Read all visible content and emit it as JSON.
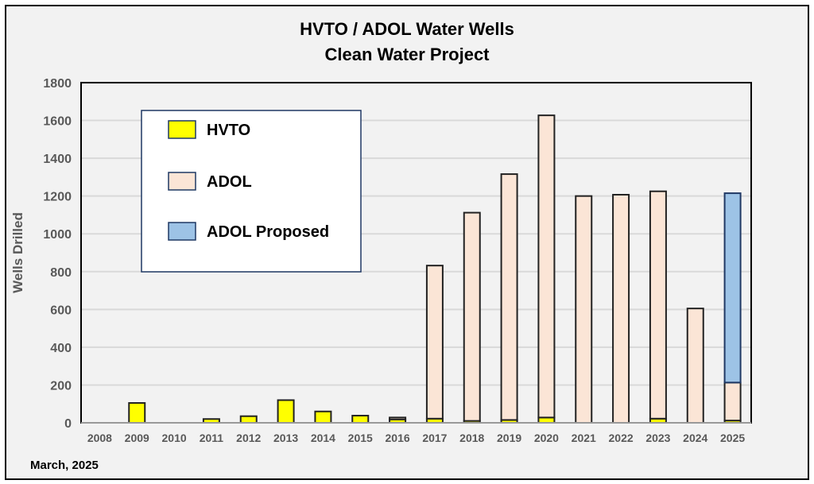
{
  "chart_data": {
    "type": "bar",
    "stacked": true,
    "title": "HVTO / ADOL Water Wells",
    "subtitle": "Clean Water Project",
    "xlabel": "",
    "ylabel": "Wells Drilled",
    "ylim": [
      0,
      1800
    ],
    "yticks": [
      0,
      200,
      400,
      600,
      800,
      1000,
      1200,
      1400,
      1600,
      1800
    ],
    "grid": true,
    "legend_position": "top-left",
    "footnote": "March, 2025",
    "categories": [
      "2008",
      "2009",
      "2010",
      "2011",
      "2012",
      "2013",
      "2014",
      "2015",
      "2016",
      "2017",
      "2018",
      "2019",
      "2020",
      "2021",
      "2022",
      "2023",
      "2024",
      "2025"
    ],
    "series": [
      {
        "name": "HVTO",
        "color": "#ffff00",
        "values": [
          0,
          105,
          0,
          20,
          35,
          120,
          60,
          38,
          18,
          22,
          10,
          15,
          28,
          0,
          0,
          22,
          0,
          12
        ]
      },
      {
        "name": "ADOL",
        "color": "#fbe5d6",
        "values": [
          0,
          0,
          0,
          0,
          0,
          0,
          0,
          0,
          10,
          810,
          1102,
          1301,
          1599,
          1200,
          1207,
          1203,
          605,
          201
        ]
      },
      {
        "name": "ADOL Proposed",
        "color": "#9dc3e6",
        "values": [
          0,
          0,
          0,
          0,
          0,
          0,
          0,
          0,
          0,
          0,
          0,
          0,
          0,
          0,
          0,
          0,
          0,
          1002
        ]
      }
    ]
  }
}
